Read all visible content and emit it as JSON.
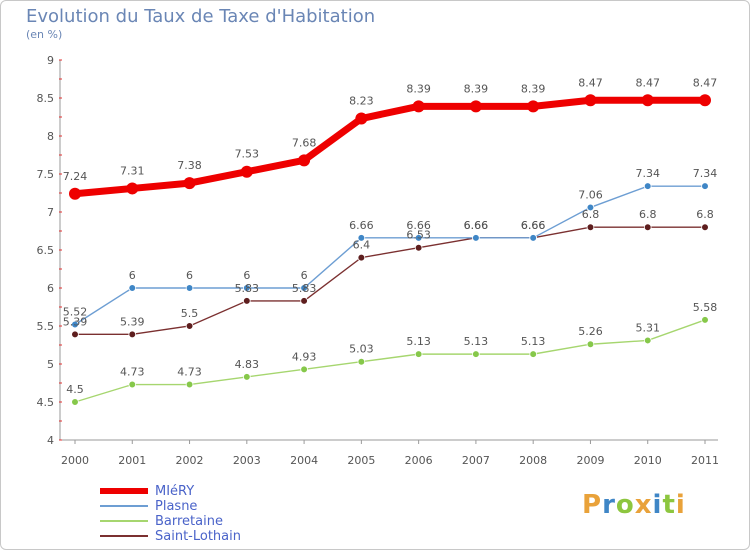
{
  "header": {
    "title": "Evolution du Taux de Taxe d'Habitation",
    "subtitle": "(en %)"
  },
  "chart_data": {
    "type": "line",
    "categories": [
      "2000",
      "2001",
      "2002",
      "2003",
      "2004",
      "2005",
      "2006",
      "2007",
      "2008",
      "2009",
      "2010",
      "2011"
    ],
    "ylim": [
      4,
      9
    ],
    "yticks": [
      "4",
      "4.5",
      "5",
      "5.5",
      "6",
      "6.5",
      "7",
      "7.5",
      "8",
      "8.5",
      "9"
    ],
    "grid": false,
    "legend_position": "bottom-left",
    "series": [
      {
        "name": "MIéRY",
        "color": "#ee0000",
        "highlight": true,
        "values": [
          7.24,
          7.31,
          7.38,
          7.53,
          7.68,
          8.23,
          8.39,
          8.39,
          8.39,
          8.47,
          8.47,
          8.47
        ],
        "labels": [
          "7.24",
          "7.31",
          "7.38",
          "7.53",
          "7.68",
          "8.23",
          "8.39",
          "8.39",
          "8.39",
          "8.47",
          "8.47",
          "8.47"
        ]
      },
      {
        "name": "Plasne",
        "color": "#6d9ed3",
        "marker_color": "#3f86c6",
        "values": [
          5.52,
          6,
          6,
          6,
          6,
          6.66,
          6.66,
          6.66,
          6.66,
          7.06,
          7.34,
          7.34
        ],
        "labels": [
          "5.52",
          "6",
          "6",
          "6",
          "6",
          "6.66",
          "6.66",
          "6.66",
          "6.66",
          "7.06",
          "7.34",
          "7.34"
        ]
      },
      {
        "name": "Barretaine",
        "color": "#a6d66f",
        "marker_color": "#86c84a",
        "values": [
          4.5,
          4.73,
          4.73,
          4.83,
          4.93,
          5.03,
          5.13,
          5.13,
          5.13,
          5.26,
          5.31,
          5.58
        ],
        "labels": [
          "4.5",
          "4.73",
          "4.73",
          "4.83",
          "4.93",
          "5.03",
          "5.13",
          "5.13",
          "5.13",
          "5.26",
          "5.31",
          "5.58"
        ]
      },
      {
        "name": "Saint-Lothain",
        "color": "#7b3030",
        "marker_color": "#5e1e1e",
        "values": [
          5.39,
          5.39,
          5.5,
          5.83,
          5.83,
          6.4,
          6.53,
          6.66,
          6.66,
          6.8,
          6.8,
          6.8
        ],
        "labels": [
          "5.39",
          "5.39",
          "5.5",
          "5.83",
          "5.83",
          "6.4",
          "6.53",
          "6.66",
          "6.66",
          "6.8",
          "6.8",
          "6.8"
        ]
      }
    ]
  },
  "logo": {
    "letters": [
      "P",
      "r",
      "o",
      "x",
      "i",
      "t",
      "i"
    ],
    "colors": [
      "#e9a23a",
      "#3f86c6",
      "#8dc63f",
      "#e9a23a",
      "#3f86c6",
      "#8dc63f",
      "#e9a23a"
    ]
  }
}
